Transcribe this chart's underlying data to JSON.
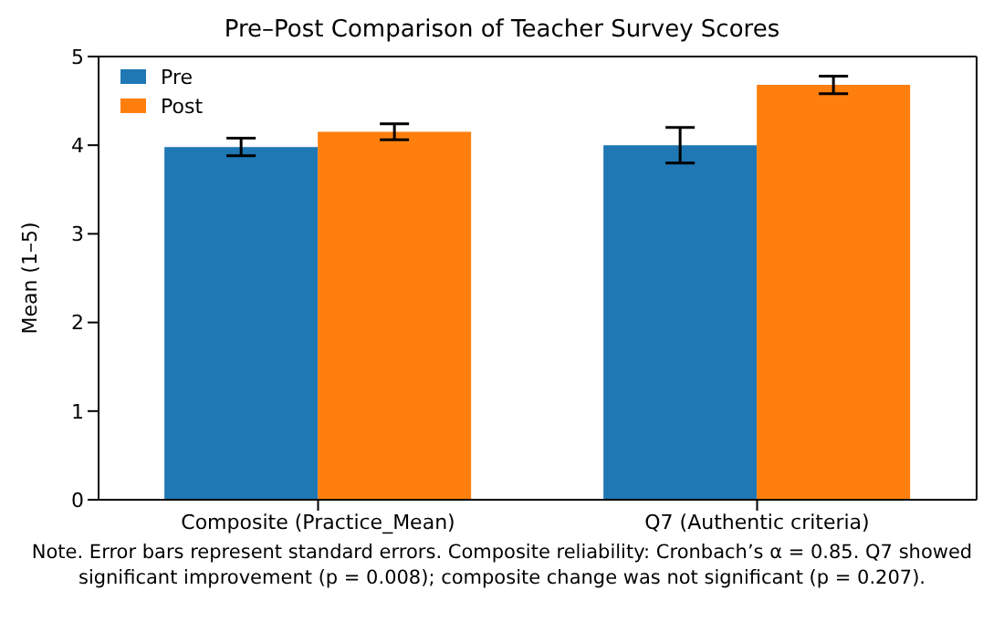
{
  "chart_data": {
    "type": "bar",
    "title": "Pre–Post Comparison of Teacher Survey Scores",
    "ylabel": "Mean (1–5)",
    "categories": [
      "Composite (Practice_Mean)",
      "Q7 (Authentic criteria)"
    ],
    "series": [
      {
        "name": "Pre",
        "color": "#1f77b4",
        "values": [
          3.98,
          4.0
        ],
        "errors": [
          0.1,
          0.2
        ]
      },
      {
        "name": "Post",
        "color": "#ff7f0e",
        "values": [
          4.15,
          4.68
        ],
        "errors": [
          0.09,
          0.1
        ]
      }
    ],
    "ylim": [
      0,
      5
    ],
    "yticks": [
      0,
      1,
      2,
      3,
      4,
      5
    ],
    "grid": false,
    "legend": "top left",
    "annotations": [
      "Note. Error bars represent standard errors. Composite reliability: Cronbach’s α = 0.85. Q7 showed significant improvement (p = 0.008); composite change was not significant (p = 0.207)."
    ]
  }
}
